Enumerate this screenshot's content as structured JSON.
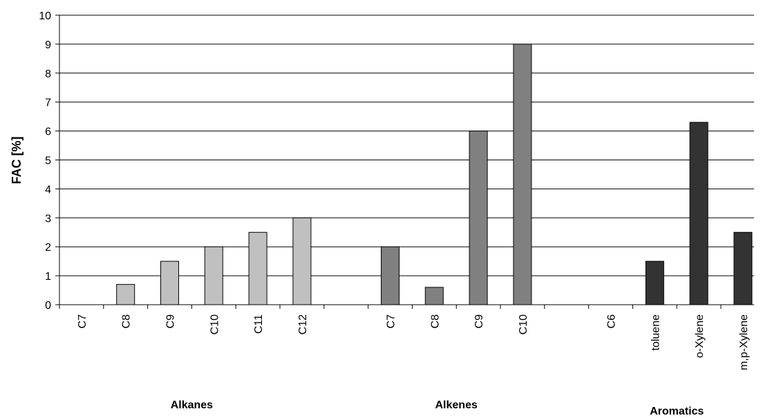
{
  "chart_data": {
    "type": "bar",
    "title": "",
    "ylabel": "FAC [%]",
    "xlabel": "",
    "ylim": [
      0,
      10
    ],
    "yticks": [
      0,
      1,
      2,
      3,
      4,
      5,
      6,
      7,
      8,
      9,
      10
    ],
    "grid": true,
    "legend": "none",
    "groups": [
      {
        "name": "Alkanes",
        "color": "#c0c0c0",
        "categories": [
          "C7",
          "C8",
          "C9",
          "C10",
          "C11",
          "C12"
        ],
        "values": [
          0,
          0.7,
          1.5,
          2,
          2.5,
          3
        ]
      },
      {
        "name": "Alkenes",
        "color": "#808080",
        "categories": [
          "C7",
          "C8",
          "C9",
          "C10"
        ],
        "values": [
          2,
          0.6,
          6,
          9
        ]
      },
      {
        "name": "Aromatics",
        "color": "#333333",
        "categories": [
          "C6",
          "toluene",
          "o-Xylene",
          "m,p-Xylene"
        ],
        "values": [
          0,
          1.5,
          6.3,
          2.5
        ]
      }
    ]
  }
}
